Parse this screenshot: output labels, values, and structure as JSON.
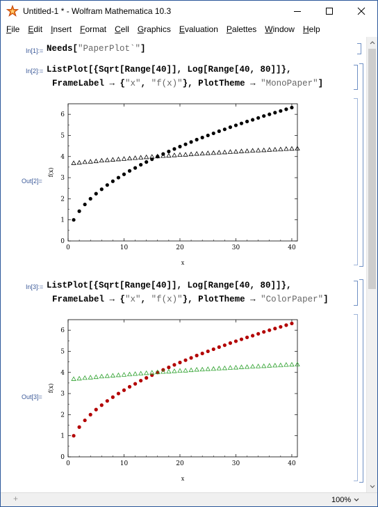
{
  "window": {
    "title": "Untitled-1 * - Wolfram Mathematica 10.3",
    "icon": "mathematica-icon"
  },
  "menu": [
    {
      "label": "File",
      "accel": "F",
      "rest": "ile"
    },
    {
      "label": "Edit",
      "accel": "E",
      "rest": "dit"
    },
    {
      "label": "Insert",
      "accel": "I",
      "rest": "nsert"
    },
    {
      "label": "Format",
      "accel": "F",
      "rest": "ormat"
    },
    {
      "label": "Cell",
      "accel": "C",
      "rest": "ell"
    },
    {
      "label": "Graphics",
      "accel": "G",
      "rest": "raphics"
    },
    {
      "label": "Evaluation",
      "accel": "E",
      "rest": "valuation"
    },
    {
      "label": "Palettes",
      "accel": "P",
      "rest": "alettes"
    },
    {
      "label": "Window",
      "accel": "W",
      "rest": "indow"
    },
    {
      "label": "Help",
      "accel": "H",
      "rest": "elp"
    }
  ],
  "cells": {
    "in1": {
      "label": "In[1]:=",
      "code": "Needs[",
      "string": "\"PaperPlot`\"",
      "tail": "]"
    },
    "in2": {
      "label": "In[2]:=",
      "line1": "ListPlot[{Sqrt[Range[40]], Log[Range[40, 80]]},",
      "line2a": "FrameLabel → {",
      "line2b": "\"x\"",
      "line2c": ", ",
      "line2d": "\"f(x)\"",
      "line2e": "}, PlotTheme → ",
      "line2f": "\"MonoPaper\"",
      "line2g": "]"
    },
    "out2": {
      "label": "Out[2]="
    },
    "in3": {
      "label": "In[3]:=",
      "line1": "ListPlot[{Sqrt[Range[40]], Log[Range[40, 80]]},",
      "line2a": "FrameLabel → {",
      "line2b": "\"x\"",
      "line2c": ", ",
      "line2d": "\"f(x)\"",
      "line2e": "}, PlotTheme → ",
      "line2f": "\"ColorPaper\"",
      "line2g": "]"
    },
    "out3": {
      "label": "Out[3]="
    }
  },
  "status": {
    "zoom": "100%"
  },
  "chart_data": [
    {
      "type": "scatter",
      "title": "",
      "xlabel": "x",
      "ylabel": "f(x)",
      "xlim": [
        0,
        41
      ],
      "ylim": [
        0,
        6.5
      ],
      "xticks": [
        0,
        10,
        20,
        30,
        40
      ],
      "yticks": [
        0,
        1,
        2,
        3,
        4,
        5,
        6
      ],
      "series": [
        {
          "marker": "circle",
          "color": "#000000",
          "x": [
            1,
            2,
            3,
            4,
            5,
            6,
            7,
            8,
            9,
            10,
            11,
            12,
            13,
            14,
            15,
            16,
            17,
            18,
            19,
            20,
            21,
            22,
            23,
            24,
            25,
            26,
            27,
            28,
            29,
            30,
            31,
            32,
            33,
            34,
            35,
            36,
            37,
            38,
            39,
            40
          ],
          "values": [
            1.0,
            1.41,
            1.73,
            2.0,
            2.24,
            2.45,
            2.65,
            2.83,
            3.0,
            3.16,
            3.32,
            3.46,
            3.61,
            3.74,
            3.87,
            4.0,
            4.12,
            4.24,
            4.36,
            4.47,
            4.58,
            4.69,
            4.8,
            4.9,
            5.0,
            5.1,
            5.2,
            5.29,
            5.39,
            5.48,
            5.57,
            5.66,
            5.74,
            5.83,
            5.92,
            6.0,
            6.08,
            6.16,
            6.24,
            6.32
          ]
        },
        {
          "marker": "triangle",
          "color": "#000000",
          "x": [
            1,
            2,
            3,
            4,
            5,
            6,
            7,
            8,
            9,
            10,
            11,
            12,
            13,
            14,
            15,
            16,
            17,
            18,
            19,
            20,
            21,
            22,
            23,
            24,
            25,
            26,
            27,
            28,
            29,
            30,
            31,
            32,
            33,
            34,
            35,
            36,
            37,
            38,
            39,
            40,
            41
          ],
          "values": [
            3.69,
            3.71,
            3.74,
            3.76,
            3.78,
            3.81,
            3.83,
            3.85,
            3.87,
            3.89,
            3.91,
            3.93,
            3.95,
            3.97,
            3.99,
            4.01,
            4.03,
            4.04,
            4.06,
            4.08,
            4.09,
            4.11,
            4.13,
            4.14,
            4.16,
            4.17,
            4.19,
            4.2,
            4.22,
            4.23,
            4.25,
            4.26,
            4.28,
            4.29,
            4.3,
            4.32,
            4.33,
            4.34,
            4.36,
            4.37,
            4.38
          ]
        }
      ]
    },
    {
      "type": "scatter",
      "title": "",
      "xlabel": "x",
      "ylabel": "f(x)",
      "xlim": [
        0,
        41
      ],
      "ylim": [
        0,
        6.5
      ],
      "xticks": [
        0,
        10,
        20,
        30,
        40
      ],
      "yticks": [
        0,
        1,
        2,
        3,
        4,
        5,
        6
      ],
      "series": [
        {
          "marker": "circle",
          "color": "#b30000",
          "x": [
            1,
            2,
            3,
            4,
            5,
            6,
            7,
            8,
            9,
            10,
            11,
            12,
            13,
            14,
            15,
            16,
            17,
            18,
            19,
            20,
            21,
            22,
            23,
            24,
            25,
            26,
            27,
            28,
            29,
            30,
            31,
            32,
            33,
            34,
            35,
            36,
            37,
            38,
            39,
            40
          ],
          "values": [
            1.0,
            1.41,
            1.73,
            2.0,
            2.24,
            2.45,
            2.65,
            2.83,
            3.0,
            3.16,
            3.32,
            3.46,
            3.61,
            3.74,
            3.87,
            4.0,
            4.12,
            4.24,
            4.36,
            4.47,
            4.58,
            4.69,
            4.8,
            4.9,
            5.0,
            5.1,
            5.2,
            5.29,
            5.39,
            5.48,
            5.57,
            5.66,
            5.74,
            5.83,
            5.92,
            6.0,
            6.08,
            6.16,
            6.24,
            6.32
          ]
        },
        {
          "marker": "triangle",
          "color": "#2ca02c",
          "x": [
            1,
            2,
            3,
            4,
            5,
            6,
            7,
            8,
            9,
            10,
            11,
            12,
            13,
            14,
            15,
            16,
            17,
            18,
            19,
            20,
            21,
            22,
            23,
            24,
            25,
            26,
            27,
            28,
            29,
            30,
            31,
            32,
            33,
            34,
            35,
            36,
            37,
            38,
            39,
            40,
            41
          ],
          "values": [
            3.69,
            3.71,
            3.74,
            3.76,
            3.78,
            3.81,
            3.83,
            3.85,
            3.87,
            3.89,
            3.91,
            3.93,
            3.95,
            3.97,
            3.99,
            4.01,
            4.03,
            4.04,
            4.06,
            4.08,
            4.09,
            4.11,
            4.13,
            4.14,
            4.16,
            4.17,
            4.19,
            4.2,
            4.22,
            4.23,
            4.25,
            4.26,
            4.28,
            4.29,
            4.3,
            4.32,
            4.33,
            4.34,
            4.36,
            4.37,
            4.38
          ]
        }
      ]
    }
  ]
}
